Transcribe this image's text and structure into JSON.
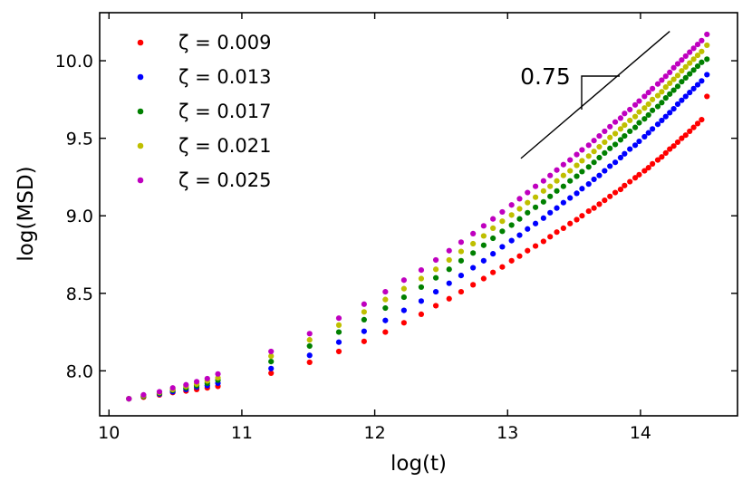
{
  "chart_data": {
    "type": "scatter",
    "title": "",
    "xlabel": "log(t)",
    "ylabel": "log(MSD)",
    "xlim": [
      9.93,
      14.73
    ],
    "ylim": [
      7.71,
      10.31
    ],
    "x_ticks": [
      10,
      11,
      12,
      13,
      14
    ],
    "x_tick_labels": [
      "10",
      "11",
      "12",
      "13",
      "14"
    ],
    "y_ticks": [
      8.0,
      8.5,
      9.0,
      9.5,
      10.0
    ],
    "y_tick_labels": [
      "8.0",
      "8.5",
      "9.0",
      "9.5",
      "10.0"
    ],
    "grid": false,
    "legend_position": "top-left",
    "series": [
      {
        "name": "ζ = 0.009",
        "color": "#ff0000",
        "final_value": 9.77
      },
      {
        "name": "ζ = 0.013",
        "color": "#0000ff",
        "final_value": 9.91
      },
      {
        "name": "ζ = 0.017",
        "color": "#008000",
        "final_value": 10.01
      },
      {
        "name": "ζ = 0.021",
        "color": "#bfbf00",
        "final_value": 10.1
      },
      {
        "name": "ζ = 0.025",
        "color": "#bf00bf",
        "final_value": 10.17
      }
    ],
    "series_sampling": {
      "x_start": 10.15,
      "x_end": 14.5,
      "x_points": [
        10.15,
        10.26,
        10.38,
        10.48,
        10.58,
        10.66,
        10.74,
        10.82,
        11.22,
        11.51,
        11.73,
        11.92,
        12.08,
        12.22,
        12.35,
        12.46,
        12.56,
        12.65,
        12.74,
        12.82,
        12.89,
        12.96,
        13.03,
        13.09,
        13.15,
        13.21,
        13.27,
        13.32,
        13.37,
        13.42,
        13.47,
        13.52,
        13.56,
        13.61,
        13.65,
        13.69,
        13.73,
        13.77,
        13.81,
        13.85,
        13.88,
        13.92,
        13.96,
        13.99,
        14.03,
        14.06,
        14.09,
        14.13,
        14.16,
        14.19,
        14.22,
        14.25,
        14.28,
        14.31,
        14.34,
        14.37,
        14.4,
        14.43,
        14.46,
        14.5
      ]
    },
    "series_values": {
      "ζ = 0.009": [
        7.82,
        7.83,
        7.845,
        7.86,
        7.87,
        7.88,
        7.89,
        7.9,
        7.985,
        8.055,
        8.125,
        8.19,
        8.25,
        8.31,
        8.365,
        8.42,
        8.465,
        8.51,
        8.555,
        8.595,
        8.635,
        8.67,
        8.71,
        8.74,
        8.775,
        8.805,
        8.835,
        8.865,
        8.895,
        8.92,
        8.95,
        8.975,
        9.0,
        9.03,
        9.05,
        9.075,
        9.1,
        9.125,
        9.15,
        9.17,
        9.195,
        9.22,
        9.245,
        9.265,
        9.29,
        9.31,
        9.335,
        9.36,
        9.38,
        9.405,
        9.43,
        9.45,
        9.475,
        9.5,
        9.52,
        9.545,
        9.57,
        9.595,
        9.62,
        9.77
      ],
      "ζ = 0.013": [
        7.82,
        7.835,
        7.85,
        7.865,
        7.88,
        7.895,
        7.905,
        7.92,
        8.015,
        8.1,
        8.185,
        8.255,
        8.325,
        8.39,
        8.45,
        8.51,
        8.565,
        8.615,
        8.665,
        8.71,
        8.755,
        8.8,
        8.84,
        8.875,
        8.915,
        8.95,
        8.985,
        9.02,
        9.05,
        9.085,
        9.115,
        9.145,
        9.175,
        9.205,
        9.235,
        9.26,
        9.29,
        9.32,
        9.345,
        9.375,
        9.4,
        9.43,
        9.455,
        9.48,
        9.51,
        9.535,
        9.56,
        9.59,
        9.615,
        9.64,
        9.665,
        9.69,
        9.72,
        9.745,
        9.77,
        9.795,
        9.82,
        9.845,
        9.87,
        9.91
      ],
      "ζ = 0.017": [
        7.82,
        7.835,
        7.855,
        7.875,
        7.89,
        7.905,
        7.92,
        7.94,
        8.06,
        8.16,
        8.25,
        8.33,
        8.405,
        8.475,
        8.54,
        8.6,
        8.655,
        8.71,
        8.76,
        8.81,
        8.855,
        8.9,
        8.94,
        8.98,
        9.02,
        9.055,
        9.09,
        9.125,
        9.16,
        9.19,
        9.225,
        9.255,
        9.285,
        9.315,
        9.345,
        9.375,
        9.405,
        9.435,
        9.46,
        9.49,
        9.515,
        9.545,
        9.57,
        9.6,
        9.625,
        9.65,
        9.68,
        9.705,
        9.73,
        9.76,
        9.785,
        9.81,
        9.835,
        9.865,
        9.89,
        9.915,
        9.94,
        9.965,
        9.99,
        10.01
      ],
      "ζ = 0.021": [
        7.82,
        7.84,
        7.86,
        7.88,
        7.9,
        7.915,
        7.935,
        7.955,
        8.095,
        8.2,
        8.295,
        8.38,
        8.46,
        8.53,
        8.595,
        8.655,
        8.715,
        8.77,
        8.82,
        8.87,
        8.92,
        8.965,
        9.005,
        9.045,
        9.085,
        9.12,
        9.16,
        9.19,
        9.225,
        9.26,
        9.29,
        9.325,
        9.355,
        9.385,
        9.415,
        9.445,
        9.475,
        9.505,
        9.53,
        9.56,
        9.585,
        9.615,
        9.64,
        9.67,
        9.695,
        9.72,
        9.75,
        9.775,
        9.8,
        9.83,
        9.855,
        9.88,
        9.905,
        9.935,
        9.96,
        9.985,
        10.01,
        10.035,
        10.06,
        10.1
      ],
      "ζ = 0.025": [
        7.82,
        7.845,
        7.865,
        7.89,
        7.91,
        7.93,
        7.95,
        7.98,
        8.125,
        8.24,
        8.34,
        8.43,
        8.51,
        8.585,
        8.65,
        8.715,
        8.775,
        8.83,
        8.885,
        8.935,
        8.98,
        9.025,
        9.07,
        9.11,
        9.15,
        9.19,
        9.225,
        9.26,
        9.295,
        9.33,
        9.36,
        9.395,
        9.425,
        9.455,
        9.485,
        9.515,
        9.545,
        9.575,
        9.605,
        9.63,
        9.66,
        9.685,
        9.715,
        9.74,
        9.77,
        9.795,
        9.82,
        9.85,
        9.875,
        9.9,
        9.925,
        9.955,
        9.98,
        10.005,
        10.03,
        10.055,
        10.08,
        10.105,
        10.13,
        10.17
      ]
    },
    "annotation": {
      "text": "0.75",
      "slope": 0.75,
      "line_start": [
        13.1,
        9.37
      ],
      "line_end": [
        14.22,
        10.19
      ]
    }
  }
}
